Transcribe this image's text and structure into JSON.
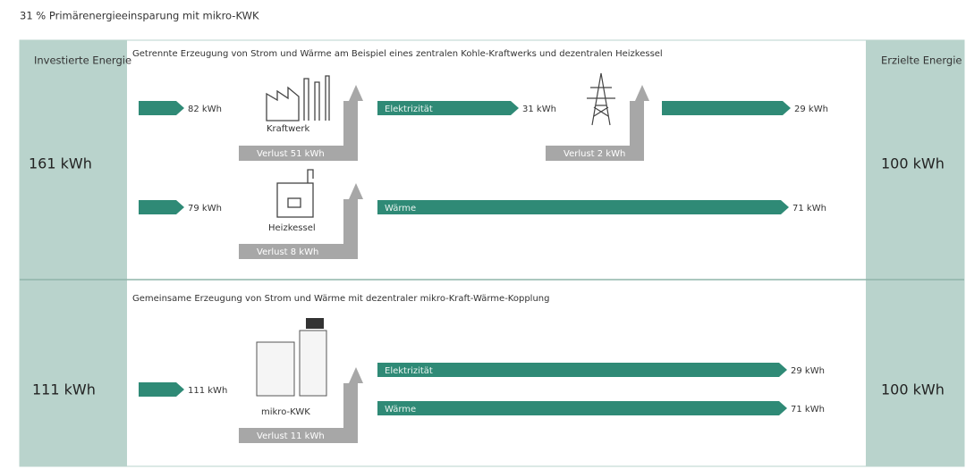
{
  "title": "31 % Primärenergieeinsparung mit mikro-KWK",
  "left_header": "Investierte Energie",
  "right_header": "Erzielte Energie",
  "section1": {
    "heading": "Getrennte Erzeugung von Strom und Wärme am Beispiel eines zentralen Kohle-Kraftwerks  und dezentralen Heizkessel",
    "invested": "161 kWh",
    "achieved": "100 kWh",
    "row1": {
      "input": "82 kWh",
      "plant": "Kraftwerk",
      "plant_loss": "Verlust 51 kWh",
      "flow": "Elektrizität",
      "flow_value": "31 kWh",
      "grid_loss": "Verlust 2 kWh",
      "output": "29 kWh"
    },
    "row2": {
      "input": "79 kWh",
      "plant": "Heizkessel",
      "plant_loss": "Verlust 8 kWh",
      "flow": "Wärme",
      "output": "71 kWh"
    }
  },
  "section2": {
    "heading": "Gemeinsame Erzeugung von Strom und Wärme mit dezentraler mikro-Kraft-Wärme-Kopplung",
    "invested": "111 kWh",
    "achieved": "100 kWh",
    "input": "111 kWh",
    "plant": "mikro-KWK",
    "plant_loss": "Verlust 11 kWh",
    "flow1": "Elektrizität",
    "output1": "29 kWh",
    "flow2": "Wärme",
    "output2": "71 kWh"
  }
}
